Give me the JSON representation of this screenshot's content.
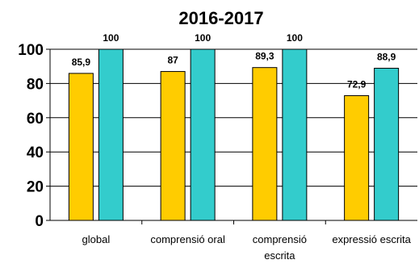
{
  "chart_data": {
    "type": "bar",
    "title": "2016-2017",
    "xlabel": "",
    "ylabel": "",
    "ylim": [
      0,
      100
    ],
    "yticks": [
      "0",
      "20",
      "40",
      "60",
      "80",
      "100"
    ],
    "grid": true,
    "legend": "none",
    "categories": [
      [
        "global"
      ],
      [
        "comprensió oral"
      ],
      [
        "comprensió",
        "escrita"
      ],
      [
        "expressió escrita"
      ]
    ],
    "series": [
      {
        "values": [
          85.9,
          87,
          89.3,
          72.9
        ],
        "labels": [
          "85,9",
          "87",
          "89,3",
          "72,9"
        ],
        "color": "#FFCC00"
      },
      {
        "values": [
          100,
          100,
          100,
          88.9
        ],
        "labels": [
          "100",
          "100",
          "100",
          "88,9"
        ],
        "color": "#33CCCC"
      }
    ]
  }
}
